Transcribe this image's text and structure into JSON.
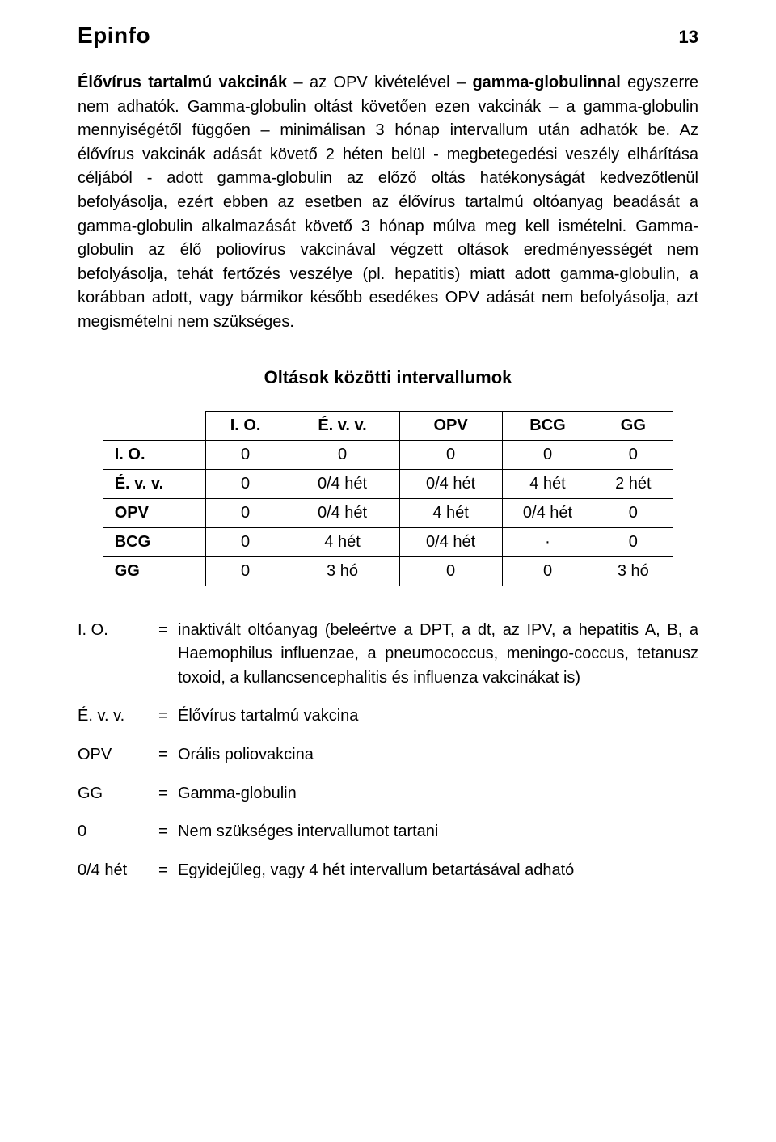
{
  "header": {
    "brand": "Epinfo",
    "page_number": "13"
  },
  "paragraph": {
    "seg1": "Élővírus tartalmú vakcinák",
    "seg2": " – az OPV kivételével – ",
    "seg3": "gamma-globulinnal",
    "seg4": " egyszerre nem adhatók. Gamma-globulin oltást követően ezen vakcinák – a gamma-globulin mennyiségétől függően – minimálisan 3 hónap intervallum után adhatók be. Az élővírus vakcinák adását követő 2 héten belül - megbetegedési veszély elhárítása céljából - adott gamma-globulin az előző oltás hatékonyságát kedvezőtlenül befolyásolja, ezért ebben az esetben az élővírus tartalmú oltóanyag beadását a gamma-globulin alkalmazását követő 3 hónap múlva meg kell ismételni. Gamma-globulin az élő poliovírus vakcinával végzett oltások eredményességét nem befolyásolja, tehát fertőzés veszélye (pl. hepatitis) miatt adott gamma-globulin, a korábban adott, vagy bármikor később esedékes OPV adását nem befolyásolja, azt megismételni nem szükséges."
  },
  "table": {
    "title": "Oltások közötti intervallumok",
    "columns": [
      "I. O.",
      "É. v. v.",
      "OPV",
      "BCG",
      "GG"
    ],
    "rows": [
      {
        "label": "I. O.",
        "cells": [
          "0",
          "0",
          "0",
          "0",
          "0"
        ]
      },
      {
        "label": "É. v. v.",
        "cells": [
          "0",
          "0/4 hét",
          "0/4 hét",
          "4 hét",
          "2 hét"
        ]
      },
      {
        "label": "OPV",
        "cells": [
          "0",
          "0/4 hét",
          "4 hét",
          "0/4 hét",
          "0"
        ]
      },
      {
        "label": "BCG",
        "cells": [
          "0",
          "4 hét",
          "0/4 hét",
          "·",
          "0"
        ]
      },
      {
        "label": "GG",
        "cells": [
          "0",
          "3 hó",
          "0",
          "0",
          "3 hó"
        ]
      }
    ],
    "col_widths": [
      "18%",
      "14%",
      "20%",
      "18%",
      "16%",
      "14%"
    ]
  },
  "legend": [
    {
      "term": "I. O.",
      "def": "inaktivált oltóanyag (beleértve a DPT, a dt, az IPV, a hepatitis A, B, a Haemophilus influenzae, a pneumococcus, meningo-coccus, tetanusz toxoid, a kullancsencephalitis és influenza vakcinákat is)"
    },
    {
      "term": "É. v. v.",
      "def": "Élővírus tartalmú vakcina"
    },
    {
      "term": "OPV",
      "def": "Orális poliovakcina"
    },
    {
      "term": "GG",
      "def": "Gamma-globulin"
    },
    {
      "term": "0",
      "def": "Nem szükséges intervallumot tartani"
    },
    {
      "term": "0/4 hét",
      "def": "Egyidejűleg, vagy 4 hét intervallum betartásával adható"
    }
  ],
  "style": {
    "text_color": "#000000",
    "background_color": "#ffffff",
    "body_fontsize": 20,
    "brand_fontsize": 28,
    "table_border_color": "#000000"
  }
}
